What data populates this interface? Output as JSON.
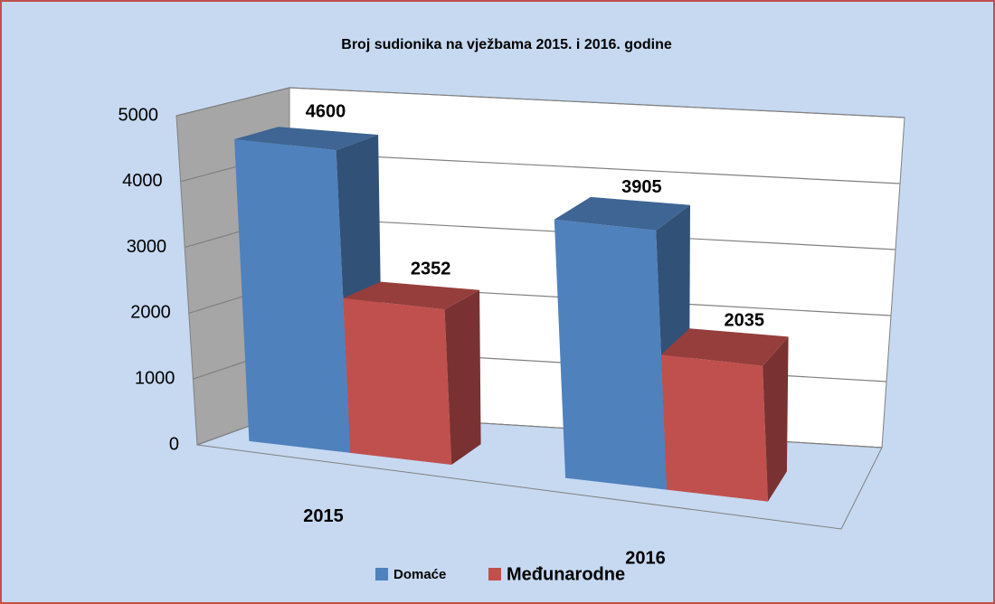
{
  "chart_data": {
    "type": "bar3d",
    "title": "Broj sudionika na vježbama 2015. i 2016. godine",
    "categories": [
      "2015",
      "2016"
    ],
    "series": [
      {
        "name": "Domaće",
        "color": "#4f81bd",
        "values": [
          4600,
          3905
        ]
      },
      {
        "name": "Međunarodne",
        "color": "#c0504d",
        "values": [
          2352,
          2035
        ]
      }
    ],
    "ylim": [
      0,
      5000
    ],
    "yticks": [
      0,
      1000,
      2000,
      3000,
      4000,
      5000
    ],
    "grid": true,
    "legend": "bottom"
  }
}
